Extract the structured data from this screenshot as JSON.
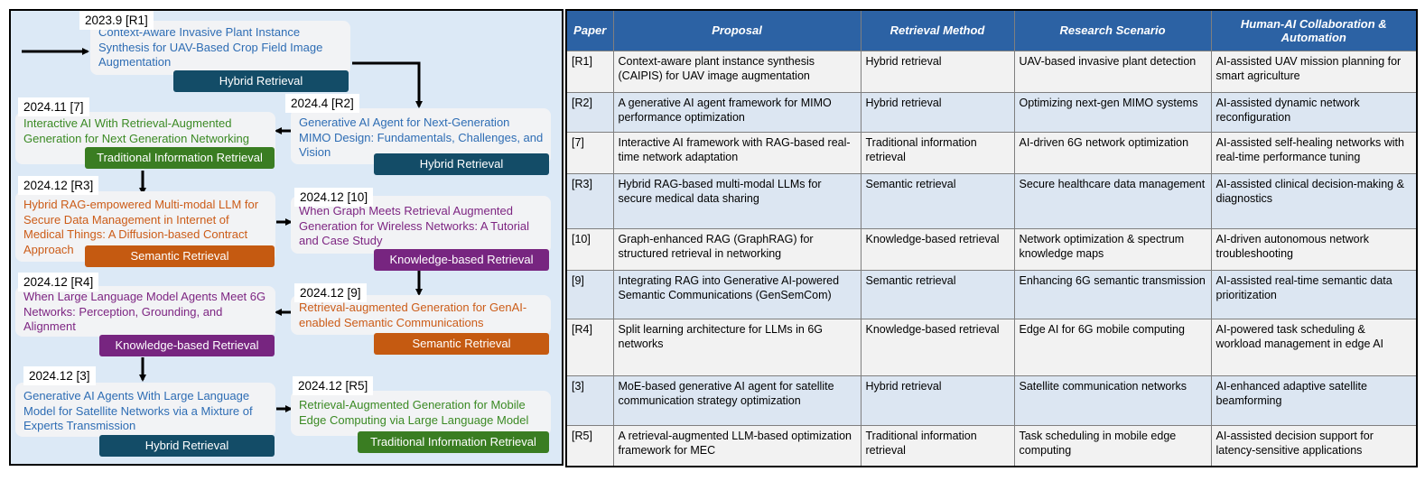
{
  "timeline": {
    "r1": {
      "date": "2023.9 [R1]",
      "title": "Context-Aware Invasive Plant Instance Synthesis for UAV-Based Crop Field Image Augmentation",
      "method": "Hybrid Retrieval"
    },
    "r2": {
      "date": "2024.4 [R2]",
      "title": "Generative AI Agent for Next-Generation MIMO Design: Fundamentals, Challenges, and Vision",
      "method": "Hybrid Retrieval"
    },
    "ref7": {
      "date": "2024.11 [7]",
      "title": "Interactive AI With Retrieval-Augmented Generation for Next Generation Networking",
      "method": "Traditional Information Retrieval"
    },
    "r3": {
      "date": "2024.12 [R3]",
      "title": "Hybrid RAG-empowered Multi-modal LLM for Secure Data Management in Internet of Medical Things: A Diffusion-based Contract Approach",
      "method": "Semantic Retrieval"
    },
    "ref10": {
      "date": "2024.12 [10]",
      "title": "When Graph Meets Retrieval Augmented Generation for Wireless Networks: A Tutorial and Case Study",
      "method": "Knowledge-based Retrieval"
    },
    "ref9": {
      "date": "2024.12 [9]",
      "title": "Retrieval-augmented Generation for GenAI-enabled Semantic Communications",
      "method": "Semantic Retrieval"
    },
    "r4": {
      "date": "2024.12 [R4]",
      "title": "When Large Language Model Agents Meet 6G Networks: Perception, Grounding, and Alignment",
      "method": "Knowledge-based Retrieval"
    },
    "ref3": {
      "date": "2024.12 [3]",
      "title": "Generative AI Agents With Large Language Model for Satellite Networks via a Mixture of Experts Transmission",
      "method": "Hybrid Retrieval"
    },
    "r5": {
      "date": "2024.12 [R5]",
      "title": "Retrieval-Augmented Generation for Mobile Edge Computing via Large Language Model",
      "method": "Traditional Information Retrieval"
    }
  },
  "table": {
    "headers": [
      "Paper",
      "Proposal",
      "Retrieval Method",
      "Research Scenario",
      "Human-AI Collaboration & Automation"
    ],
    "rows": [
      [
        "[R1]",
        "Context-aware plant instance synthesis (CAIPIS) for UAV image augmentation",
        "Hybrid retrieval",
        "UAV-based invasive plant detection",
        "AI-assisted UAV mission planning for smart agriculture"
      ],
      [
        "[R2]",
        "A generative AI agent framework for MIMO performance optimization",
        "Hybrid retrieval",
        "Optimizing next-gen MIMO systems",
        "AI-assisted dynamic network reconfiguration"
      ],
      [
        "[7]",
        "Interactive AI framework with RAG-based real-time network adaptation",
        "Traditional information retrieval",
        "AI-driven 6G network optimization",
        "AI-assisted self-healing networks with real-time performance tuning"
      ],
      [
        "[R3]",
        "Hybrid RAG-based multi-modal LLMs for secure medical data sharing",
        "Semantic retrieval",
        "Secure healthcare data management",
        "AI-assisted clinical decision-making & diagnostics"
      ],
      [
        "[10]",
        "Graph-enhanced RAG (GraphRAG) for structured retrieval in networking",
        "Knowledge-based retrieval",
        "Network optimization & spectrum knowledge maps",
        "AI-driven autonomous network troubleshooting"
      ],
      [
        "[9]",
        "Integrating RAG into Generative AI-powered Semantic Communications (GenSemCom)",
        "Semantic retrieval",
        "Enhancing 6G semantic transmission",
        "AI-assisted real-time semantic data prioritization"
      ],
      [
        "[R4]",
        "Split learning architecture for LLMs in 6G networks",
        "Knowledge-based retrieval",
        "Edge AI for 6G mobile computing",
        "AI-powered task scheduling & workload management in edge AI"
      ],
      [
        "[3]",
        "MoE-based generative AI agent for satellite communication strategy optimization",
        "Hybrid retrieval",
        "Satellite communication networks",
        "AI-enhanced adaptive satellite beamforming"
      ],
      [
        "[R5]",
        "A retrieval-augmented LLM-based optimization framework for MEC",
        "Traditional information retrieval",
        "Task scheduling in mobile edge computing",
        "AI-assisted decision support for latency-sensitive applications"
      ]
    ]
  }
}
